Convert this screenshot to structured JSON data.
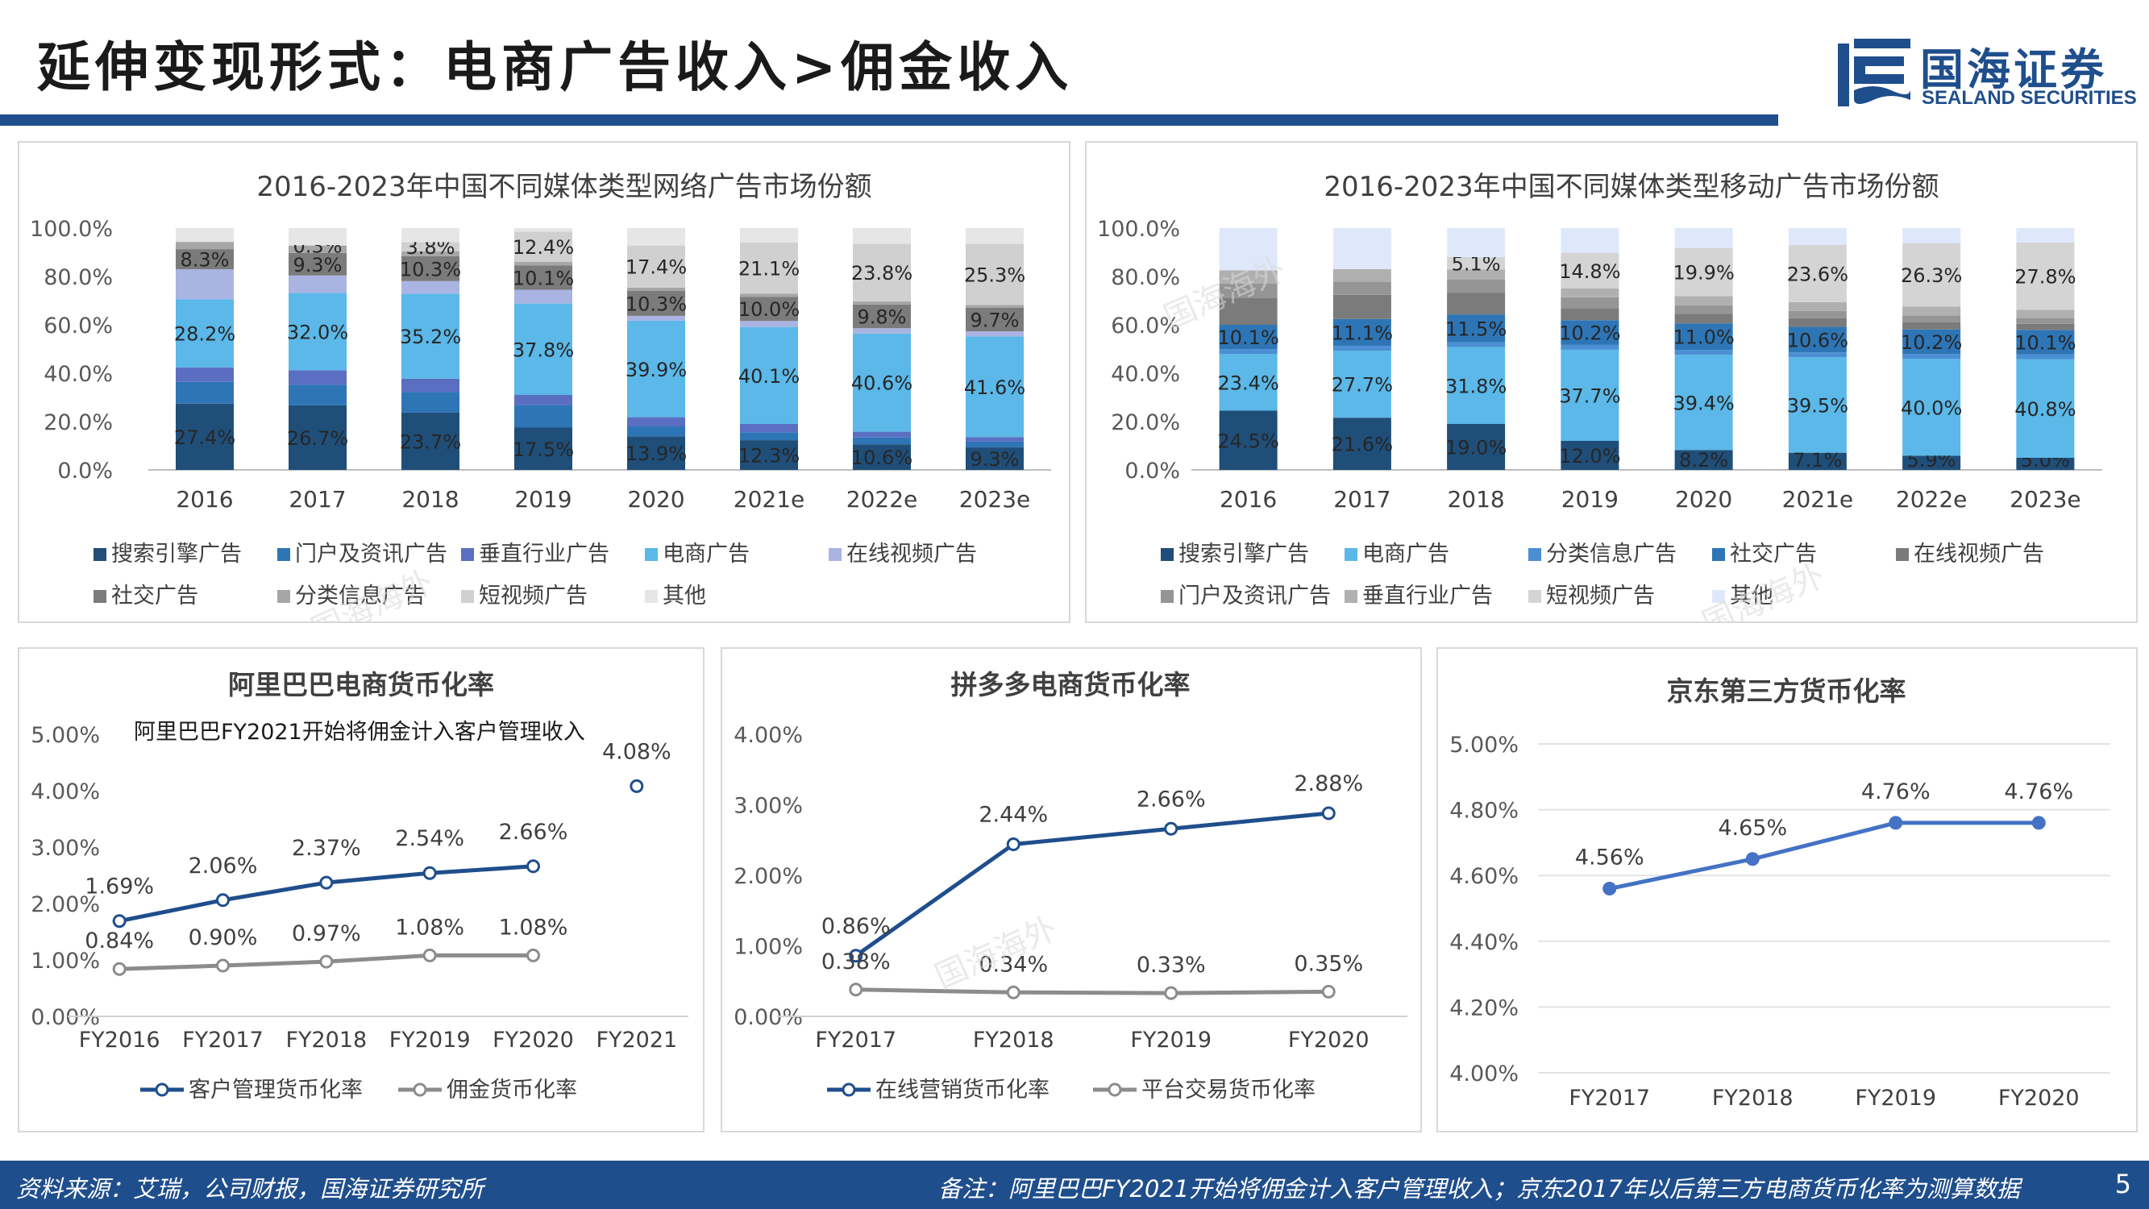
{
  "page": {
    "title": "延伸变现形式：电商广告收入>佣金收入",
    "logo_cn": "国海证券",
    "logo_en": "SEALAND SECURITIES",
    "watermark": "国海海外",
    "source": "资料来源：艾瑞，公司财报，国海证券研究所",
    "note": "备注：阿里巴巴FY2021开始将佣金计入客户管理收入；京东2017年以后第三方电商货币化率为测算数据",
    "page_number": "5"
  },
  "colors": {
    "brand": "#1f4e8c",
    "line_dark": "#1f4e8c",
    "line_gray": "#8c8c8c",
    "line_jd": "#4472c4"
  },
  "chart_data": [
    {
      "type": "bar",
      "stacked": true,
      "title": "2016-2023年中国不同媒体类型网络广告市场份额",
      "categories": [
        "2016",
        "2017",
        "2018",
        "2019",
        "2020",
        "2021e",
        "2022e",
        "2023e"
      ],
      "ylim": [
        0,
        100
      ],
      "yticks": [
        "0.0%",
        "20.0%",
        "40.0%",
        "60.0%",
        "80.0%",
        "100.0%"
      ],
      "legend_position": "bottom",
      "series": [
        {
          "name": "搜索引擎广告",
          "color": "#1f4e79",
          "values": [
            27.4,
            26.7,
            23.7,
            17.5,
            13.9,
            12.3,
            10.6,
            9.3
          ],
          "labels": [
            "27.4%",
            "26.7%",
            "23.7%",
            "17.5%",
            "13.9%",
            "12.3%",
            "10.6%",
            "9.3%"
          ]
        },
        {
          "name": "门户及资讯广告",
          "color": "#2e75b6",
          "values": [
            9.0,
            8.5,
            8.5,
            9.3,
            4.1,
            3.3,
            2.8,
            2.4
          ],
          "labels": []
        },
        {
          "name": "垂直行业广告",
          "color": "#5b6fc2",
          "values": [
            6.0,
            6.0,
            5.5,
            4.2,
            3.8,
            3.4,
            2.4,
            1.9
          ],
          "labels": []
        },
        {
          "name": "电商广告",
          "color": "#5bb8e8",
          "values": [
            28.2,
            32.0,
            35.2,
            37.8,
            39.9,
            40.1,
            40.6,
            41.6
          ],
          "labels": [
            "28.2%",
            "32.0%",
            "35.2%",
            "37.8%",
            "39.9%",
            "40.1%",
            "40.6%",
            "41.6%"
          ]
        },
        {
          "name": "在线视频广告",
          "color": "#aab4e2",
          "values": [
            12.4,
            7.2,
            5.2,
            5.7,
            2.0,
            2.5,
            2.2,
            2.1
          ],
          "labels": []
        },
        {
          "name": "社交广告",
          "color": "#7b7b7b",
          "values": [
            8.3,
            9.3,
            10.3,
            10.1,
            10.3,
            10.0,
            9.8,
            9.7
          ],
          "labels": [
            "8.3%",
            "9.3%",
            "10.3%",
            "10.1%",
            "10.3%",
            "10.0%",
            "9.8%",
            "9.7%"
          ]
        },
        {
          "name": "分类信息广告",
          "color": "#a6a6a6",
          "values": [
            3.0,
            3.0,
            2.0,
            1.5,
            1.4,
            1.3,
            1.3,
            1.2
          ],
          "labels": []
        },
        {
          "name": "短视频广告",
          "color": "#d0d0d0",
          "values": [
            0,
            0.3,
            3.8,
            12.4,
            17.4,
            21.1,
            23.8,
            25.3
          ],
          "labels": [
            "",
            "0.3%",
            "3.8%",
            "12.4%",
            "17.4%",
            "21.1%",
            "23.8%",
            "25.3%"
          ]
        },
        {
          "name": "其他",
          "color": "#e6e6e6",
          "values": [
            5.7,
            7.0,
            5.8,
            1.5,
            7.2,
            6.0,
            6.5,
            6.5
          ],
          "labels": []
        }
      ]
    },
    {
      "type": "bar",
      "stacked": true,
      "title": "2016-2023年中国不同媒体类型移动广告市场份额",
      "categories": [
        "2016",
        "2017",
        "2018",
        "2019",
        "2020",
        "2021e",
        "2022e",
        "2023e"
      ],
      "ylim": [
        0,
        100
      ],
      "yticks": [
        "0.0%",
        "20.0%",
        "40.0%",
        "60.0%",
        "80.0%",
        "100.0%"
      ],
      "legend_position": "bottom",
      "series": [
        {
          "name": "搜索引擎广告",
          "color": "#1f4e79",
          "values": [
            24.5,
            21.6,
            19.0,
            12.0,
            8.2,
            7.1,
            5.9,
            5.0
          ],
          "labels": [
            "24.5%",
            "21.6%",
            "19.0%",
            "12.0%",
            "8.2%",
            "7.1%",
            "5.9%",
            "5.0%"
          ]
        },
        {
          "name": "电商广告",
          "color": "#5bb8e8",
          "values": [
            23.4,
            27.7,
            31.8,
            37.7,
            39.4,
            39.5,
            40.0,
            40.8
          ],
          "labels": [
            "23.4%",
            "27.7%",
            "31.8%",
            "37.7%",
            "39.4%",
            "39.5%",
            "40.0%",
            "40.8%"
          ]
        },
        {
          "name": "分类信息广告",
          "color": "#4a8fd4",
          "values": [
            2.0,
            2.0,
            2.0,
            2.0,
            2.0,
            2.0,
            2.0,
            2.0
          ],
          "labels": []
        },
        {
          "name": "社交广告",
          "color": "#2e75b6",
          "values": [
            10.1,
            11.1,
            11.5,
            10.2,
            11.0,
            10.6,
            10.2,
            10.1
          ],
          "labels": [
            "10.1%",
            "11.1%",
            "11.5%",
            "10.2%",
            "11.0%",
            "10.6%",
            "10.2%",
            "10.1%"
          ]
        },
        {
          "name": "在线视频广告",
          "color": "#7b7b7b",
          "values": [
            11.0,
            10.0,
            9.0,
            5.0,
            4.0,
            3.5,
            3.0,
            2.5
          ],
          "labels": []
        },
        {
          "name": "门户及资讯广告",
          "color": "#959595",
          "values": [
            6.0,
            5.5,
            5.5,
            4.5,
            3.5,
            3.0,
            2.7,
            2.4
          ],
          "labels": []
        },
        {
          "name": "垂直行业广告",
          "color": "#b0b0b0",
          "values": [
            5.5,
            5.1,
            4.1,
            3.6,
            3.8,
            3.7,
            3.7,
            3.4
          ],
          "labels": []
        },
        {
          "name": "短视频广告",
          "color": "#d4d4d4",
          "values": [
            0,
            0,
            5.1,
            14.8,
            19.9,
            23.6,
            26.3,
            27.8
          ],
          "labels": [
            "",
            "",
            "5.1%",
            "14.8%",
            "19.9%",
            "23.6%",
            "26.3%",
            "27.8%"
          ]
        },
        {
          "name": "其他",
          "color": "#dfe8fb",
          "values": [
            17.5,
            17.0,
            12.0,
            10.2,
            8.2,
            7.0,
            6.2,
            6.0
          ],
          "labels": []
        }
      ]
    },
    {
      "type": "line",
      "title": "阿里巴巴电商货币化率",
      "annotation": "阿里巴巴FY2021开始将佣金计入客户管理收入",
      "categories": [
        "FY2016",
        "FY2017",
        "FY2018",
        "FY2019",
        "FY2020",
        "FY2021"
      ],
      "ylim": [
        0,
        5
      ],
      "yticks": [
        "0.00%",
        "1.00%",
        "2.00%",
        "3.00%",
        "4.00%",
        "5.00%"
      ],
      "legend_position": "bottom",
      "series": [
        {
          "name": "客户管理货币化率",
          "color": "#1f4e8c",
          "values": [
            1.69,
            2.06,
            2.37,
            2.54,
            2.66,
            4.08
          ],
          "labels": [
            "1.69%",
            "2.06%",
            "2.37%",
            "2.54%",
            "2.66%",
            "4.08%"
          ],
          "break_before_last": true
        },
        {
          "name": "佣金货币化率",
          "color": "#8c8c8c",
          "values": [
            0.84,
            0.9,
            0.97,
            1.08,
            1.08,
            null
          ],
          "labels": [
            "0.84%",
            "0.90%",
            "0.97%",
            "1.08%",
            "1.08%",
            ""
          ]
        }
      ]
    },
    {
      "type": "line",
      "title": "拼多多电商货币化率",
      "categories": [
        "FY2017",
        "FY2018",
        "FY2019",
        "FY2020"
      ],
      "ylim": [
        0,
        4
      ],
      "yticks": [
        "0.00%",
        "1.00%",
        "2.00%",
        "3.00%",
        "4.00%"
      ],
      "legend_position": "bottom",
      "series": [
        {
          "name": "在线营销货币化率",
          "color": "#1f4e8c",
          "values": [
            0.86,
            2.44,
            2.66,
            2.88
          ],
          "labels": [
            "0.86%",
            "2.44%",
            "2.66%",
            "2.88%"
          ]
        },
        {
          "name": "平台交易货币化率",
          "color": "#8c8c8c",
          "values": [
            0.38,
            0.34,
            0.33,
            0.35
          ],
          "labels": [
            "0.38%",
            "0.34%",
            "0.33%",
            "0.35%"
          ]
        }
      ]
    },
    {
      "type": "line",
      "title": "京东第三方货币化率",
      "categories": [
        "FY2017",
        "FY2018",
        "FY2019",
        "FY2020"
      ],
      "ylim": [
        4,
        5
      ],
      "yticks": [
        "4.00%",
        "4.20%",
        "4.40%",
        "4.60%",
        "4.80%",
        "5.00%"
      ],
      "series": [
        {
          "name": "",
          "color": "#4472c4",
          "values": [
            4.56,
            4.65,
            4.76,
            4.76
          ],
          "labels": [
            "4.56%",
            "4.65%",
            "4.76%",
            "4.76%"
          ]
        }
      ]
    }
  ]
}
